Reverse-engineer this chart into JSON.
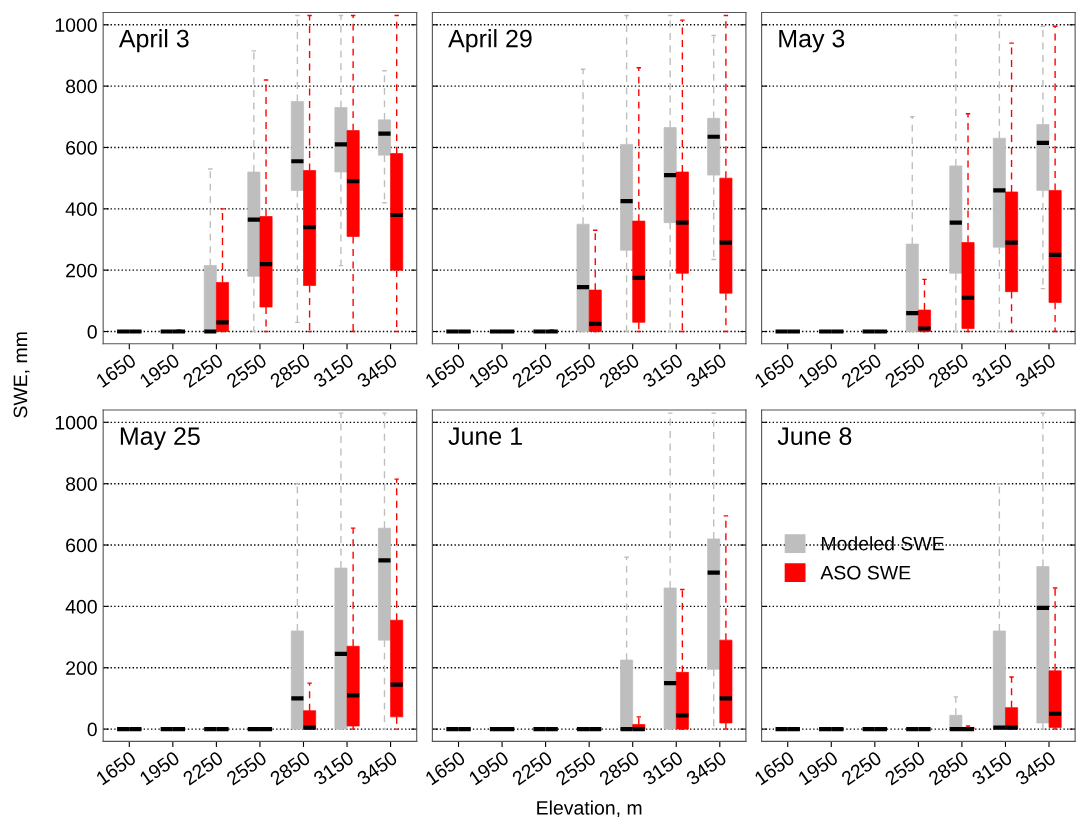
{
  "chart_data": [
    {
      "type": "box",
      "title": "April 3",
      "ylabel": "SWE, mm",
      "categories": [
        "1650",
        "1950",
        "2250",
        "2550",
        "2850",
        "3150",
        "3450"
      ],
      "ylim": [
        -40,
        1040
      ],
      "yticks": [
        0,
        200,
        400,
        600,
        800,
        1000
      ],
      "grid": "y",
      "line_style": "dashed",
      "series": [
        {
          "color": "#bebebe",
          "boxes": [
            {
              "low": 0,
              "q1": 0,
              "median": 0,
              "q3": 0,
              "high": 0
            },
            {
              "low": 0,
              "q1": 0,
              "median": 0,
              "q3": 0,
              "high": 0
            },
            {
              "low": 0,
              "q1": 0,
              "median": 0,
              "q3": 215,
              "high": 530
            },
            {
              "low": 0,
              "q1": 180,
              "median": 365,
              "q3": 520,
              "high": 915
            },
            {
              "low": 30,
              "q1": 460,
              "median": 555,
              "q3": 750,
              "high": 1030
            },
            {
              "low": 215,
              "q1": 520,
              "median": 610,
              "q3": 730,
              "high": 1030
            },
            {
              "low": 420,
              "q1": 575,
              "median": 645,
              "q3": 690,
              "high": 850
            }
          ]
        },
        {
          "color": "#ff0000",
          "boxes": [
            {
              "low": 0,
              "q1": 0,
              "median": 0,
              "q3": 0,
              "high": 0
            },
            {
              "low": 0,
              "q1": 0,
              "median": 0,
              "q3": 0,
              "high": 5
            },
            {
              "low": 0,
              "q1": 0,
              "median": 30,
              "q3": 160,
              "high": 400
            },
            {
              "low": 0,
              "q1": 80,
              "median": 220,
              "q3": 375,
              "high": 820
            },
            {
              "low": 0,
              "q1": 150,
              "median": 340,
              "q3": 525,
              "high": 1030
            },
            {
              "low": 0,
              "q1": 310,
              "median": 490,
              "q3": 655,
              "high": 1030
            },
            {
              "low": 0,
              "q1": 200,
              "median": 380,
              "q3": 580,
              "high": 1030
            }
          ]
        }
      ]
    },
    {
      "type": "box",
      "title": "April 29",
      "categories": [
        "1650",
        "1950",
        "2250",
        "2550",
        "2850",
        "3150",
        "3450"
      ],
      "ylim": [
        -40,
        1040
      ],
      "yticks": [
        0,
        200,
        400,
        600,
        800,
        1000
      ],
      "grid": "y",
      "line_style": "dashed",
      "tick_labels": "x",
      "series": [
        {
          "color": "#bebebe",
          "boxes": [
            {
              "low": 0,
              "q1": 0,
              "median": 0,
              "q3": 0,
              "high": 0
            },
            {
              "low": 0,
              "q1": 0,
              "median": 0,
              "q3": 0,
              "high": 0
            },
            {
              "low": 0,
              "q1": 0,
              "median": 0,
              "q3": 0,
              "high": 0
            },
            {
              "low": 0,
              "q1": 0,
              "median": 145,
              "q3": 350,
              "high": 855
            },
            {
              "low": 0,
              "q1": 265,
              "median": 425,
              "q3": 610,
              "high": 1030
            },
            {
              "low": 0,
              "q1": 355,
              "median": 510,
              "q3": 665,
              "high": 1030
            },
            {
              "low": 235,
              "q1": 510,
              "median": 635,
              "q3": 695,
              "high": 965
            }
          ]
        },
        {
          "color": "#ff0000",
          "boxes": [
            {
              "low": 0,
              "q1": 0,
              "median": 0,
              "q3": 0,
              "high": 0
            },
            {
              "low": 0,
              "q1": 0,
              "median": 0,
              "q3": 0,
              "high": 0
            },
            {
              "low": 0,
              "q1": 0,
              "median": 0,
              "q3": 0,
              "high": 5
            },
            {
              "low": 0,
              "q1": 0,
              "median": 25,
              "q3": 135,
              "high": 330
            },
            {
              "low": 0,
              "q1": 30,
              "median": 175,
              "q3": 360,
              "high": 860
            },
            {
              "low": 0,
              "q1": 190,
              "median": 355,
              "q3": 520,
              "high": 1015
            },
            {
              "low": 0,
              "q1": 125,
              "median": 290,
              "q3": 500,
              "high": 1030
            }
          ]
        }
      ]
    },
    {
      "type": "box",
      "title": "May 3",
      "categories": [
        "1650",
        "1950",
        "2250",
        "2550",
        "2850",
        "3150",
        "3450"
      ],
      "ylim": [
        -40,
        1040
      ],
      "yticks": [
        0,
        200,
        400,
        600,
        800,
        1000
      ],
      "grid": "y",
      "line_style": "dashed",
      "tick_labels": "x",
      "series": [
        {
          "color": "#bebebe",
          "boxes": [
            {
              "low": 0,
              "q1": 0,
              "median": 0,
              "q3": 0,
              "high": 0
            },
            {
              "low": 0,
              "q1": 0,
              "median": 0,
              "q3": 0,
              "high": 0
            },
            {
              "low": 0,
              "q1": 0,
              "median": 0,
              "q3": 0,
              "high": 0
            },
            {
              "low": 0,
              "q1": 0,
              "median": 60,
              "q3": 285,
              "high": 700
            },
            {
              "low": 0,
              "q1": 190,
              "median": 355,
              "q3": 540,
              "high": 1030
            },
            {
              "low": 0,
              "q1": 275,
              "median": 460,
              "q3": 630,
              "high": 1030
            },
            {
              "low": 140,
              "q1": 460,
              "median": 615,
              "q3": 675,
              "high": 995
            }
          ]
        },
        {
          "color": "#ff0000",
          "boxes": [
            {
              "low": 0,
              "q1": 0,
              "median": 0,
              "q3": 0,
              "high": 0
            },
            {
              "low": 0,
              "q1": 0,
              "median": 0,
              "q3": 0,
              "high": 0
            },
            {
              "low": 0,
              "q1": 0,
              "median": 0,
              "q3": 0,
              "high": 0
            },
            {
              "low": 0,
              "q1": 0,
              "median": 10,
              "q3": 70,
              "high": 170
            },
            {
              "low": 0,
              "q1": 10,
              "median": 110,
              "q3": 290,
              "high": 710
            },
            {
              "low": 0,
              "q1": 130,
              "median": 290,
              "q3": 455,
              "high": 940
            },
            {
              "low": 0,
              "q1": 95,
              "median": 250,
              "q3": 460,
              "high": 995
            }
          ]
        }
      ]
    },
    {
      "type": "box",
      "title": "May 25",
      "categories": [
        "1650",
        "1950",
        "2250",
        "2550",
        "2850",
        "3150",
        "3450"
      ],
      "ylim": [
        -40,
        1040
      ],
      "yticks": [
        0,
        200,
        400,
        600,
        800,
        1000
      ],
      "grid": "y",
      "line_style": "dashed",
      "series": [
        {
          "color": "#bebebe",
          "boxes": [
            {
              "low": 0,
              "q1": 0,
              "median": 0,
              "q3": 0,
              "high": 0
            },
            {
              "low": 0,
              "q1": 0,
              "median": 0,
              "q3": 0,
              "high": 0
            },
            {
              "low": 0,
              "q1": 0,
              "median": 0,
              "q3": 0,
              "high": 0
            },
            {
              "low": 0,
              "q1": 0,
              "median": 0,
              "q3": 0,
              "high": 0
            },
            {
              "low": 0,
              "q1": 0,
              "median": 100,
              "q3": 320,
              "high": 800
            },
            {
              "low": 0,
              "q1": 0,
              "median": 245,
              "q3": 525,
              "high": 1030
            },
            {
              "low": 0,
              "q1": 290,
              "median": 550,
              "q3": 655,
              "high": 1030
            }
          ]
        },
        {
          "color": "#ff0000",
          "boxes": [
            {
              "low": 0,
              "q1": 0,
              "median": 0,
              "q3": 0,
              "high": 0
            },
            {
              "low": 0,
              "q1": 0,
              "median": 0,
              "q3": 0,
              "high": 0
            },
            {
              "low": 0,
              "q1": 0,
              "median": 0,
              "q3": 0,
              "high": 0
            },
            {
              "low": 0,
              "q1": 0,
              "median": 0,
              "q3": 0,
              "high": 0
            },
            {
              "low": 0,
              "q1": 0,
              "median": 5,
              "q3": 60,
              "high": 150
            },
            {
              "low": 0,
              "q1": 10,
              "median": 110,
              "q3": 270,
              "high": 655
            },
            {
              "low": 0,
              "q1": 40,
              "median": 145,
              "q3": 355,
              "high": 815
            }
          ]
        }
      ]
    },
    {
      "type": "box",
      "title": "June 1",
      "xlabel": "Elevation, m",
      "categories": [
        "1650",
        "1950",
        "2250",
        "2550",
        "2850",
        "3150",
        "3450"
      ],
      "ylim": [
        -40,
        1040
      ],
      "yticks": [
        0,
        200,
        400,
        600,
        800,
        1000
      ],
      "grid": "y",
      "line_style": "dashed",
      "tick_labels": "x",
      "series": [
        {
          "color": "#bebebe",
          "boxes": [
            {
              "low": 0,
              "q1": 0,
              "median": 0,
              "q3": 0,
              "high": 0
            },
            {
              "low": 0,
              "q1": 0,
              "median": 0,
              "q3": 0,
              "high": 0
            },
            {
              "low": 0,
              "q1": 0,
              "median": 0,
              "q3": 0,
              "high": 0
            },
            {
              "low": 0,
              "q1": 0,
              "median": 0,
              "q3": 0,
              "high": 0
            },
            {
              "low": 0,
              "q1": 0,
              "median": 0,
              "q3": 225,
              "high": 560
            },
            {
              "low": 0,
              "q1": 0,
              "median": 150,
              "q3": 460,
              "high": 1030
            },
            {
              "low": 0,
              "q1": 195,
              "median": 510,
              "q3": 620,
              "high": 1030
            }
          ]
        },
        {
          "color": "#ff0000",
          "boxes": [
            {
              "low": 0,
              "q1": 0,
              "median": 0,
              "q3": 0,
              "high": 0
            },
            {
              "low": 0,
              "q1": 0,
              "median": 0,
              "q3": 0,
              "high": 0
            },
            {
              "low": 0,
              "q1": 0,
              "median": 0,
              "q3": 0,
              "high": 0
            },
            {
              "low": 0,
              "q1": 0,
              "median": 0,
              "q3": 0,
              "high": 0
            },
            {
              "low": 0,
              "q1": 0,
              "median": 0,
              "q3": 15,
              "high": 40
            },
            {
              "low": 0,
              "q1": 0,
              "median": 45,
              "q3": 185,
              "high": 455
            },
            {
              "low": 0,
              "q1": 20,
              "median": 100,
              "q3": 290,
              "high": 695
            }
          ]
        }
      ]
    },
    {
      "type": "box",
      "title": "June 8",
      "categories": [
        "1650",
        "1950",
        "2250",
        "2550",
        "2850",
        "3150",
        "3450"
      ],
      "ylim": [
        -40,
        1040
      ],
      "yticks": [
        0,
        200,
        400,
        600,
        800,
        1000
      ],
      "grid": "y",
      "line_style": "dashed",
      "tick_labels": "x",
      "legend": "left",
      "series": [
        {
          "name": "Modeled SWE",
          "color": "#bebebe",
          "boxes": [
            {
              "low": 0,
              "q1": 0,
              "median": 0,
              "q3": 0,
              "high": 0
            },
            {
              "low": 0,
              "q1": 0,
              "median": 0,
              "q3": 0,
              "high": 0
            },
            {
              "low": 0,
              "q1": 0,
              "median": 0,
              "q3": 0,
              "high": 0
            },
            {
              "low": 0,
              "q1": 0,
              "median": 0,
              "q3": 0,
              "high": 0
            },
            {
              "low": 0,
              "q1": 0,
              "median": 0,
              "q3": 45,
              "high": 105
            },
            {
              "low": 0,
              "q1": 0,
              "median": 5,
              "q3": 320,
              "high": 800
            },
            {
              "low": 0,
              "q1": 20,
              "median": 395,
              "q3": 530,
              "high": 1030
            }
          ]
        },
        {
          "name": "ASO SWE",
          "color": "#ff0000",
          "boxes": [
            {
              "low": 0,
              "q1": 0,
              "median": 0,
              "q3": 0,
              "high": 0
            },
            {
              "low": 0,
              "q1": 0,
              "median": 0,
              "q3": 0,
              "high": 0
            },
            {
              "low": 0,
              "q1": 0,
              "median": 0,
              "q3": 0,
              "high": 0
            },
            {
              "low": 0,
              "q1": 0,
              "median": 0,
              "q3": 0,
              "high": 0
            },
            {
              "low": 0,
              "q1": 0,
              "median": 0,
              "q3": 5,
              "high": 10
            },
            {
              "low": 0,
              "q1": 0,
              "median": 5,
              "q3": 70,
              "high": 170
            },
            {
              "low": 0,
              "q1": 5,
              "median": 50,
              "q3": 190,
              "high": 460
            }
          ]
        }
      ]
    }
  ]
}
